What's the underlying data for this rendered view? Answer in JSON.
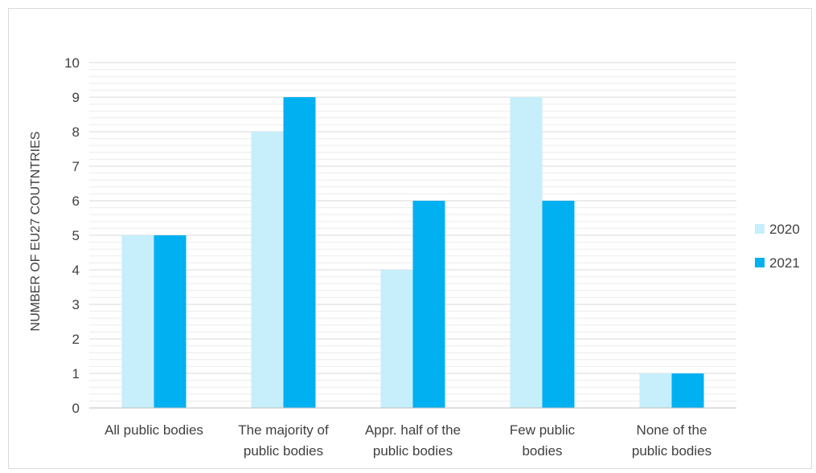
{
  "chart_data": {
    "type": "bar",
    "title": "",
    "xlabel": "",
    "ylabel": "NUMBER OF EU27 COUTNTRIES",
    "ylim": [
      0,
      10
    ],
    "yticks": [
      "0",
      "1",
      "2",
      "3",
      "4",
      "5",
      "6",
      "7",
      "8",
      "9",
      "10"
    ],
    "categories": [
      [
        "All public bodies"
      ],
      [
        "The majority of",
        "public bodies"
      ],
      [
        "Appr. half of the",
        "public bodies"
      ],
      [
        "Few public",
        "bodies"
      ],
      [
        "None of the",
        "public bodies"
      ]
    ],
    "series": [
      {
        "name": "2020",
        "color": "#c6eefb",
        "values": [
          5,
          8,
          4,
          9,
          1
        ]
      },
      {
        "name": "2021",
        "color": "#00b0f0",
        "values": [
          5,
          9,
          6,
          6,
          1
        ]
      }
    ],
    "grid": true,
    "minor_grid": true,
    "legend": "right"
  }
}
